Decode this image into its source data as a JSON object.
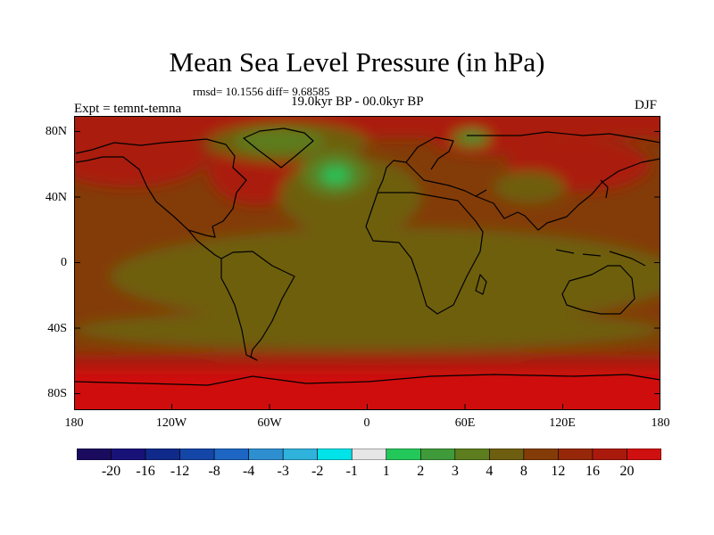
{
  "title": "Mean Sea Level Pressure (in hPa)",
  "stats_text": "rmsd= 10.1556 diff= 9.68585",
  "experiment_text": "Expt = temnt-temna",
  "period_text": "19.0kyr BP - 00.0kyr BP",
  "season": "DJF",
  "lat_ticks": [
    "80N",
    "40N",
    "0",
    "40S",
    "80S"
  ],
  "lon_ticks": [
    "180",
    "120W",
    "60W",
    "0",
    "60E",
    "120E",
    "180"
  ],
  "colorbar": {
    "colors": [
      "#1a0b5e",
      "#181278",
      "#0f2a8a",
      "#1446a8",
      "#1d66c4",
      "#2d8fd0",
      "#2fb2dc",
      "#00e3e8",
      "#e6e6e6",
      "#23c85a",
      "#3f9a3a",
      "#5d7d1e",
      "#6e5e10",
      "#833c08",
      "#962708",
      "#aa1a0c",
      "#d01010"
    ],
    "labels": [
      "-20",
      "-16",
      "-12",
      "-8",
      "-4",
      "-3",
      "-2",
      "-1",
      "1",
      "2",
      "3",
      "4",
      "8",
      "12",
      "16",
      "20"
    ]
  },
  "field_colors": {
    "base": "#833c08",
    "moderate": "#6e5e10",
    "low": "#5d7d1e",
    "lower": "#3f9a3a",
    "lowest": "#23c85a",
    "high": "#aa1a0c",
    "highest": "#d01010"
  }
}
